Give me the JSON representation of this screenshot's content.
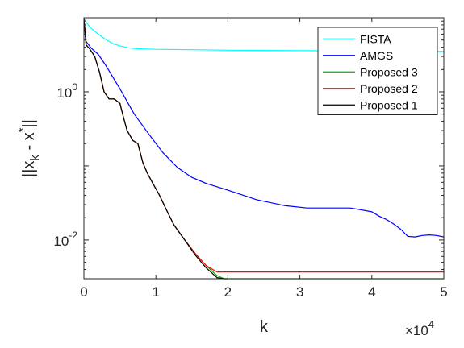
{
  "chart_data": {
    "type": "line",
    "title": "",
    "xlabel": "k",
    "ylabel": "||x_k - x^*||",
    "x_multiplier_label": "×10",
    "x_multiplier_exponent": "4",
    "x_scale": 10000,
    "xlim": [
      0,
      50000
    ],
    "ylim": [
      0.003,
      10
    ],
    "yscale": "log",
    "grid": false,
    "legend": "top-right",
    "x_ticks": [
      0,
      1,
      2,
      3,
      4,
      5
    ],
    "y_ticks": [
      {
        "value": 0.01,
        "base": "10",
        "exp": "-2"
      },
      {
        "value": 1,
        "base": "10",
        "exp": "0"
      }
    ],
    "series": [
      {
        "name": "FISTA",
        "color": "#00ffff",
        "x": [
          0,
          500,
          1000,
          2000,
          3000,
          4000,
          5000,
          6000,
          7000,
          8000,
          10000,
          15000,
          20000,
          30000,
          40000,
          50000
        ],
        "y": [
          9.8,
          8.2,
          7.2,
          6.0,
          5.1,
          4.5,
          4.15,
          3.95,
          3.85,
          3.8,
          3.75,
          3.7,
          3.65,
          3.6,
          3.55,
          3.5
        ]
      },
      {
        "name": "AMGS",
        "color": "#0000ff",
        "x": [
          0,
          300,
          1000,
          2000,
          3000,
          5000,
          7000,
          9000,
          11000,
          13000,
          15000,
          17000,
          20000,
          24000,
          28000,
          31000,
          34000,
          37000,
          38000,
          40000,
          41000,
          42000,
          43000,
          44000,
          45000,
          46000,
          47000,
          48000,
          49000,
          50000
        ],
        "y": [
          9.8,
          4.8,
          3.9,
          3.2,
          2.3,
          1.1,
          0.5,
          0.27,
          0.15,
          0.095,
          0.07,
          0.058,
          0.047,
          0.035,
          0.029,
          0.027,
          0.027,
          0.027,
          0.026,
          0.024,
          0.021,
          0.019,
          0.0165,
          0.014,
          0.0112,
          0.011,
          0.0115,
          0.0117,
          0.0115,
          0.011
        ]
      },
      {
        "name": "Proposed 3",
        "color": "#00b000",
        "x": [
          0,
          300,
          800,
          1500,
          2200,
          2800,
          3500,
          4200,
          5000,
          5500,
          6000,
          6800,
          7500,
          8200,
          8800,
          9500,
          10500,
          11500,
          12500,
          14000,
          15500,
          17000,
          18500,
          19500,
          20000,
          30000,
          40000,
          50000
        ],
        "y": [
          9.8,
          4.3,
          3.8,
          3.0,
          1.8,
          1.0,
          0.8,
          0.8,
          0.7,
          0.45,
          0.3,
          0.22,
          0.2,
          0.11,
          0.08,
          0.06,
          0.04,
          0.025,
          0.016,
          0.01,
          0.0065,
          0.0045,
          0.0033,
          0.003,
          0.003,
          0.003,
          0.003,
          0.003
        ]
      },
      {
        "name": "Proposed 2",
        "color": "#ff0000",
        "x": [
          0,
          300,
          800,
          1500,
          2200,
          2800,
          3500,
          4200,
          5000,
          5500,
          6000,
          6800,
          7500,
          8200,
          8800,
          9500,
          10500,
          11500,
          12500,
          14000,
          15500,
          17000,
          18500,
          19500,
          20000,
          30000,
          40000,
          50000
        ],
        "y": [
          9.8,
          4.3,
          3.8,
          3.0,
          1.8,
          1.0,
          0.8,
          0.8,
          0.7,
          0.45,
          0.3,
          0.22,
          0.2,
          0.11,
          0.08,
          0.06,
          0.04,
          0.025,
          0.016,
          0.01,
          0.0065,
          0.0045,
          0.0037,
          0.0037,
          0.0037,
          0.0037,
          0.0037,
          0.0037
        ]
      },
      {
        "name": "Proposed 1",
        "color": "#000000",
        "x": [
          0,
          300,
          800,
          1500,
          2200,
          2800,
          3500,
          4200,
          5000,
          5500,
          6000,
          6800,
          7500,
          8200,
          8800,
          9500,
          10500,
          11500,
          12500,
          14000,
          15500,
          17000,
          18500,
          19500,
          20000
        ],
        "y": [
          9.8,
          4.3,
          3.8,
          3.0,
          1.8,
          1.0,
          0.8,
          0.8,
          0.7,
          0.45,
          0.3,
          0.22,
          0.2,
          0.11,
          0.08,
          0.06,
          0.04,
          0.025,
          0.016,
          0.01,
          0.0062,
          0.0042,
          0.0031,
          0.003,
          0.003
        ]
      }
    ]
  }
}
